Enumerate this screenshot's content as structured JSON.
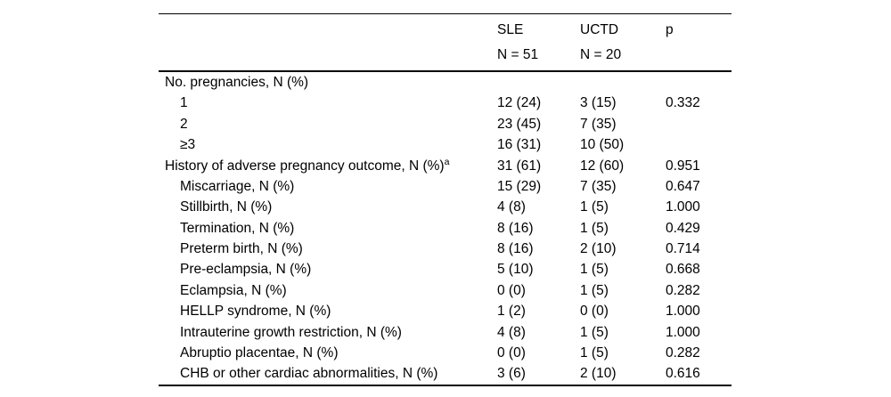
{
  "table": {
    "columns": [
      {
        "label": "SLE",
        "sublabel": "N = 51"
      },
      {
        "label": "UCTD",
        "sublabel": "N = 20"
      },
      {
        "label": "p",
        "sublabel": ""
      }
    ],
    "rows": [
      {
        "label": "No. pregnancies, N (%)",
        "sle": "",
        "uctd": "",
        "p": ""
      },
      {
        "label": "1",
        "sle": "12 (24)",
        "uctd": "3 (15)",
        "p": "0.332"
      },
      {
        "label": "2",
        "sle": "23 (45)",
        "uctd": "7 (35)",
        "p": ""
      },
      {
        "label": "≥3",
        "sle": "16 (31)",
        "uctd": "10 (50)",
        "p": ""
      },
      {
        "label": "History of adverse pregnancy outcome, N (%)",
        "sup": "a",
        "sle": "31 (61)",
        "uctd": "12 (60)",
        "p": "0.951"
      },
      {
        "label": "Miscarriage, N (%)",
        "sle": "15 (29)",
        "uctd": "7 (35)",
        "p": "0.647"
      },
      {
        "label": "Stillbirth, N (%)",
        "sle": "4 (8)",
        "uctd": "1 (5)",
        "p": "1.000"
      },
      {
        "label": "Termination, N (%)",
        "sle": "8 (16)",
        "uctd": "1 (5)",
        "p": "0.429"
      },
      {
        "label": "Preterm birth, N (%)",
        "sle": "8 (16)",
        "uctd": "2 (10)",
        "p": "0.714"
      },
      {
        "label": "Pre-eclampsia, N (%)",
        "sle": "5 (10)",
        "uctd": "1 (5)",
        "p": "0.668"
      },
      {
        "label": "Eclampsia, N (%)",
        "sle": "0 (0)",
        "uctd": "1 (5)",
        "p": "0.282"
      },
      {
        "label": "HELLP syndrome, N (%)",
        "sle": "1 (2)",
        "uctd": "0 (0)",
        "p": "1.000"
      },
      {
        "label": "Intrauterine growth restriction, N (%)",
        "sle": "4 (8)",
        "uctd": "1 (5)",
        "p": "1.000"
      },
      {
        "label": "Abruptio placentae, N (%)",
        "sle": "0 (0)",
        "uctd": "1 (5)",
        "p": "0.282"
      },
      {
        "label": "CHB or other cardiac abnormalities, N (%)",
        "sle": "3 (6)",
        "uctd": "2 (10)",
        "p": "0.616"
      }
    ]
  }
}
